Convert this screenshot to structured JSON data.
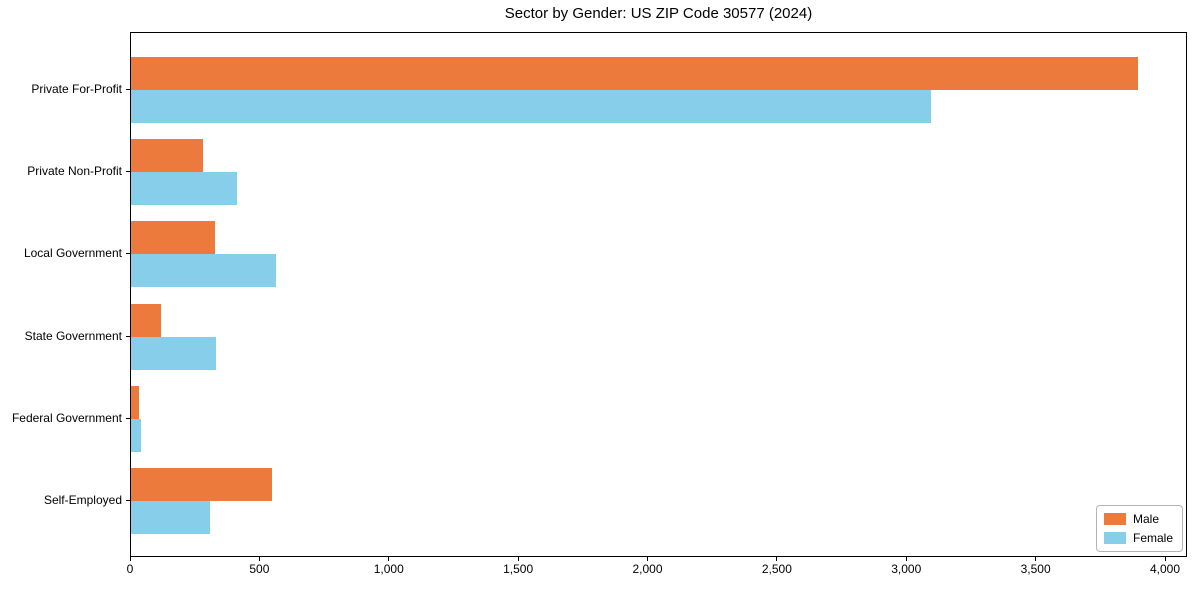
{
  "chart_data": {
    "type": "bar",
    "orientation": "horizontal",
    "title": "Sector by Gender: US ZIP Code 30577 (2024)",
    "xlabel": "",
    "ylabel": "",
    "categories": [
      "Private For-Profit",
      "Private Non-Profit",
      "Local Government",
      "State Government",
      "Federal Government",
      "Self-Employed"
    ],
    "series": [
      {
        "name": "Male",
        "color": "#EC7A3C",
        "values": [
          3890,
          280,
          325,
          115,
          30,
          545
        ]
      },
      {
        "name": "Female",
        "color": "#87CEEB",
        "values": [
          3090,
          410,
          560,
          330,
          40,
          305
        ]
      }
    ],
    "xlim": [
      0,
      4085
    ],
    "xticks": [
      0,
      500,
      1000,
      1500,
      2000,
      2500,
      3000,
      3500,
      4000
    ],
    "xtick_labels": [
      "0",
      "500",
      "1,000",
      "1,500",
      "2,000",
      "2,500",
      "3,000",
      "3,500",
      "4,000"
    ],
    "grid": false,
    "legend_position": "lower right"
  },
  "legend": {
    "items": [
      {
        "label": "Male",
        "color": "#EC7A3C"
      },
      {
        "label": "Female",
        "color": "#87CEEB"
      }
    ]
  }
}
